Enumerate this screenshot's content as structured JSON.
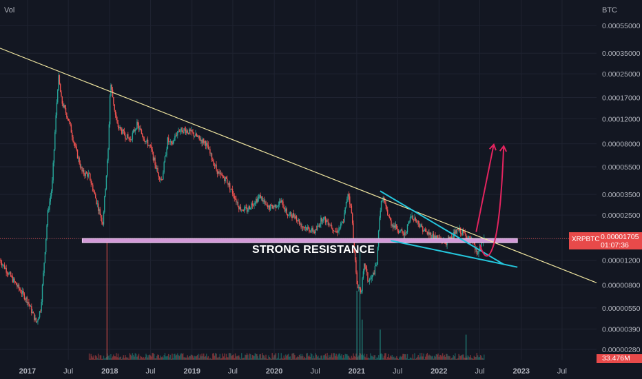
{
  "header": {
    "volume_label": "Vol",
    "currency_label": "BTC"
  },
  "ticker": {
    "symbol": "XRPBTC",
    "last_price": "0.00001705",
    "countdown": "01:07:36"
  },
  "volume": {
    "last_value": "33.476M"
  },
  "annotations": {
    "resistance_text": "STRONG RESISTANCE"
  },
  "colors": {
    "background": "#131722",
    "grid": "#1f2331",
    "axis_text": "#b2b5be",
    "candle_up": "#26a69a",
    "candle_down": "#ef5350",
    "trendline": "#f0e6a0",
    "wedge": "#24c6dc",
    "resistance_band": "#d39ad8",
    "projection_arrows": "#e3245f",
    "price_badge": "#e84a4a"
  },
  "chart_data": {
    "type": "candlestick",
    "symbol": "XRPBTC",
    "y_scale": "log",
    "y_ticks": [
      "0.00055000",
      "0.00035000",
      "0.00025000",
      "0.00017000",
      "0.00012000",
      "0.00008000",
      "0.00005500",
      "0.00003500",
      "0.00002500",
      "0.00001700",
      "0.00001200",
      "0.00000800",
      "0.00000550",
      "0.00000390",
      "0.00000280"
    ],
    "y_tick_values": [
      0.00055,
      0.00035,
      0.00025,
      0.00017,
      0.00012,
      8e-05,
      5.5e-05,
      3.5e-05,
      2.5e-05,
      1.7e-05,
      1.2e-05,
      8e-06,
      5.5e-06,
      3.9e-06,
      2.8e-06
    ],
    "x_ticks": [
      "2017",
      "Jul",
      "2018",
      "Jul",
      "2019",
      "Jul",
      "2020",
      "Jul",
      "2021",
      "Jul",
      "2022",
      "Jul",
      "2023",
      "Jul"
    ],
    "x_tick_dates": [
      "2017-01-01",
      "2017-07-01",
      "2018-01-01",
      "2018-07-01",
      "2019-01-01",
      "2019-07-01",
      "2020-01-01",
      "2020-07-01",
      "2021-01-01",
      "2021-07-01",
      "2022-01-01",
      "2022-07-01",
      "2023-01-01",
      "2023-07-01"
    ],
    "x_range": [
      "2016-09-01",
      "2023-12-01"
    ],
    "price_path": [
      [
        "2016-09-01",
        1.2e-05
      ],
      [
        "2016-11-01",
        8.5e-06
      ],
      [
        "2017-01-01",
        6.2e-06
      ],
      [
        "2017-02-10",
        4.3e-06
      ],
      [
        "2017-03-01",
        5.5e-06
      ],
      [
        "2017-04-01",
        2.6e-05
      ],
      [
        "2017-04-20",
        4e-05
      ],
      [
        "2017-05-05",
        0.00011
      ],
      [
        "2017-05-18",
        0.00024
      ],
      [
        "2017-06-01",
        0.00016
      ],
      [
        "2017-07-01",
        0.00012
      ],
      [
        "2017-08-01",
        7.5e-05
      ],
      [
        "2017-09-01",
        5e-05
      ],
      [
        "2017-10-01",
        4.8e-05
      ],
      [
        "2017-11-01",
        3.2e-05
      ],
      [
        "2017-12-01",
        2.2e-05
      ],
      [
        "2017-12-25",
        7.2e-05
      ],
      [
        "2018-01-04",
        0.00022
      ],
      [
        "2018-02-01",
        0.00011
      ],
      [
        "2018-03-01",
        9.5e-05
      ],
      [
        "2018-04-01",
        8.5e-05
      ],
      [
        "2018-05-01",
        0.00011
      ],
      [
        "2018-06-01",
        8.8e-05
      ],
      [
        "2018-07-01",
        7.5e-05
      ],
      [
        "2018-08-01",
        5e-05
      ],
      [
        "2018-08-20",
        4.4e-05
      ],
      [
        "2018-09-15",
        8.5e-05
      ],
      [
        "2018-10-01",
        7.8e-05
      ],
      [
        "2018-11-01",
        0.0001
      ],
      [
        "2018-12-01",
        0.0001
      ],
      [
        "2019-01-01",
        9.5e-05
      ],
      [
        "2019-02-01",
        8.7e-05
      ],
      [
        "2019-03-01",
        8.2e-05
      ],
      [
        "2019-04-01",
        6.2e-05
      ],
      [
        "2019-05-01",
        4.8e-05
      ],
      [
        "2019-06-01",
        4.5e-05
      ],
      [
        "2019-07-01",
        3.6e-05
      ],
      [
        "2019-08-01",
        2.8e-05
      ],
      [
        "2019-09-01",
        2.7e-05
      ],
      [
        "2019-10-01",
        3.1e-05
      ],
      [
        "2019-11-01",
        3.4e-05
      ],
      [
        "2019-12-01",
        2.8e-05
      ],
      [
        "2020-01-01",
        2.9e-05
      ],
      [
        "2020-02-01",
        3.1e-05
      ],
      [
        "2020-03-01",
        2.5e-05
      ],
      [
        "2020-04-01",
        2.5e-05
      ],
      [
        "2020-05-01",
        2.1e-05
      ],
      [
        "2020-06-01",
        2e-05
      ],
      [
        "2020-07-01",
        1.9e-05
      ],
      [
        "2020-08-01",
        2.4e-05
      ],
      [
        "2020-09-01",
        2.2e-05
      ],
      [
        "2020-10-01",
        1.9e-05
      ],
      [
        "2020-11-01",
        2.2e-05
      ],
      [
        "2020-11-24",
        3.7e-05
      ],
      [
        "2020-12-10",
        2.5e-05
      ],
      [
        "2021-01-01",
        8.2e-06
      ],
      [
        "2021-01-20",
        7.2e-06
      ],
      [
        "2021-02-05",
        1.15e-05
      ],
      [
        "2021-02-20",
        8.5e-06
      ],
      [
        "2021-03-10",
        9e-06
      ],
      [
        "2021-04-01",
        1.15e-05
      ],
      [
        "2021-04-12",
        2.5e-05
      ],
      [
        "2021-04-25",
        3.4e-05
      ],
      [
        "2021-05-10",
        2.8e-05
      ],
      [
        "2021-06-01",
        2.2e-05
      ],
      [
        "2021-07-01",
        2e-05
      ],
      [
        "2021-08-01",
        1.8e-05
      ],
      [
        "2021-09-01",
        2.5e-05
      ],
      [
        "2021-10-01",
        2.2e-05
      ],
      [
        "2021-11-01",
        1.9e-05
      ],
      [
        "2021-12-01",
        1.8e-05
      ],
      [
        "2022-01-01",
        1.7e-05
      ],
      [
        "2022-02-01",
        1.6e-05
      ],
      [
        "2022-03-01",
        1.8e-05
      ],
      [
        "2022-04-01",
        1.95e-05
      ],
      [
        "2022-05-01",
        1.8e-05
      ],
      [
        "2022-06-01",
        1.55e-05
      ],
      [
        "2022-06-20",
        1.32e-05
      ],
      [
        "2022-07-01",
        1.45e-05
      ],
      [
        "2022-07-20",
        1.705e-05
      ]
    ],
    "volume_spikes": [
      [
        "2017-12-20",
        0.97
      ],
      [
        "2021-01-02",
        0.55
      ],
      [
        "2021-01-15",
        0.86
      ],
      [
        "2021-01-25",
        0.32
      ],
      [
        "2021-04-15",
        0.24
      ],
      [
        "2022-05-01",
        0.2
      ]
    ],
    "drawings": {
      "long_trendline": [
        [
          "2016-09-01",
          0.00038
        ],
        [
          "2023-12-01",
          8.3e-06
        ]
      ],
      "wedge_upper": [
        [
          "2021-04-15",
          3.7e-05
        ],
        [
          "2022-10-15",
          1.12e-05
        ]
      ],
      "wedge_lower": [
        [
          "2021-06-01",
          1.65e-05
        ],
        [
          "2022-12-15",
          1.07e-05
        ]
      ],
      "resistance_band": {
        "from": "2017-09-01",
        "to": "2022-12-15",
        "level": 1.65e-05
      },
      "projection_arrows": [
        {
          "path": [
            [
              "2022-06-15",
              1.9e-05
            ],
            [
              "2022-09-01",
              7.9e-05
            ]
          ]
        },
        {
          "path": [
            [
              "2022-07-01",
              1.55e-05
            ],
            [
              "2022-08-01",
              1.3e-05
            ],
            [
              "2022-09-01",
              1.55e-05
            ],
            [
              "2022-10-15",
              7.7e-05
            ]
          ]
        }
      ]
    }
  }
}
